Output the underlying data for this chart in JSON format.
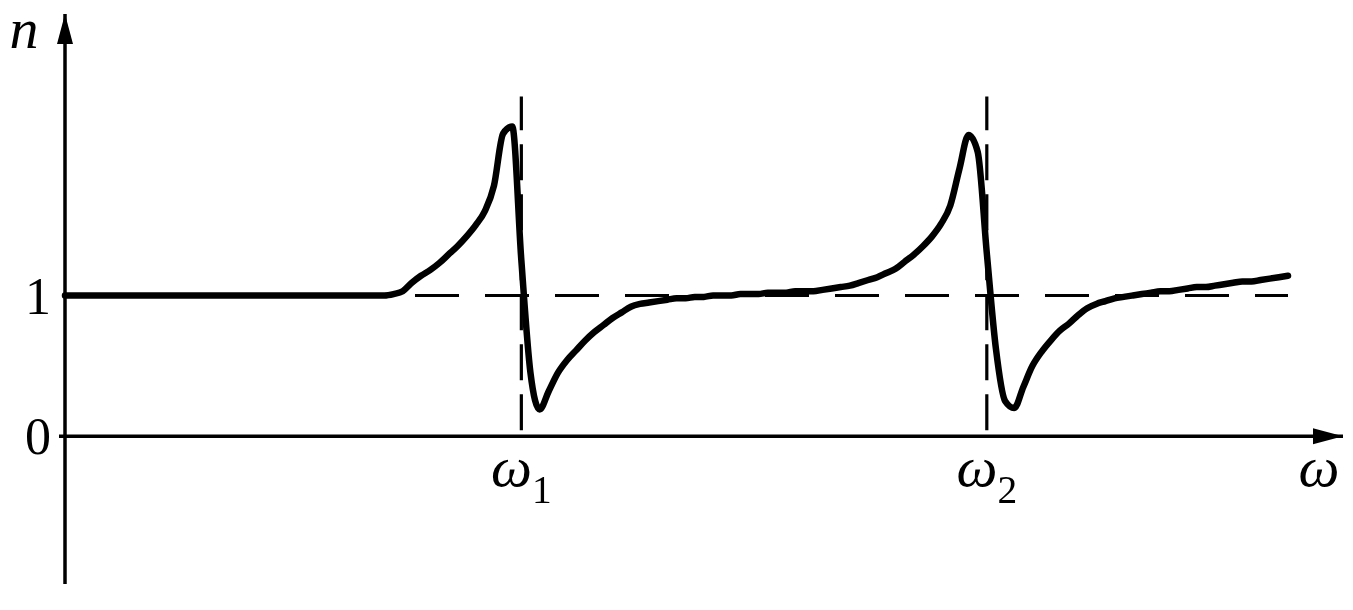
{
  "chart_data": {
    "type": "line",
    "categories": [
      null,
      null,
      null,
      null,
      null,
      null,
      null,
      null,
      null,
      null,
      null,
      null,
      null,
      null,
      null,
      null,
      null,
      null,
      null,
      null,
      null,
      null,
      null,
      null,
      null,
      null,
      null,
      null,
      null,
      null,
      null,
      null,
      null,
      null,
      null,
      null,
      null,
      null,
      null,
      null,
      null,
      null,
      null,
      null,
      null,
      null,
      null,
      null,
      null,
      null,
      "ω$_{1}$",
      null,
      null,
      null,
      null,
      null,
      null,
      null,
      null,
      null,
      null,
      null,
      null,
      null,
      null,
      null,
      null,
      null,
      null,
      null,
      null,
      null,
      null,
      null,
      null,
      null,
      null,
      null,
      null,
      null,
      null,
      null,
      null,
      null,
      null,
      null,
      null,
      null,
      null,
      null,
      null,
      null,
      null,
      null,
      null,
      null,
      null,
      null,
      null,
      null,
      null,
      "ω$_{2}$",
      null,
      null,
      null,
      null,
      null,
      null,
      null,
      null,
      null,
      null,
      null,
      null,
      null,
      null,
      null,
      null,
      null,
      null,
      null,
      null,
      null,
      null,
      null,
      null,
      null,
      null,
      null,
      null,
      null,
      null,
      null,
      null,
      null
    ],
    "series": [
      {
        "color": "#000000",
        "values": [
          1,
          1,
          1,
          1,
          1,
          1,
          1,
          1,
          1,
          1,
          1,
          1,
          1,
          1,
          1,
          1,
          1,
          1,
          1,
          1,
          1,
          1,
          1,
          1,
          1,
          1,
          1,
          1,
          1,
          1,
          1,
          1,
          1,
          1,
          1,
          1,
          1.01,
          1.03,
          1.09,
          1.14,
          1.18,
          1.23,
          1.29,
          1.35,
          1.42,
          1.5,
          1.6,
          1.78,
          2.15,
          2.2,
          1.25,
          0.45,
          0.19,
          0.32,
          0.45,
          0.54,
          0.61,
          0.68,
          0.74,
          0.79,
          0.84,
          0.88,
          0.92,
          0.94,
          0.95,
          0.96,
          0.97,
          0.98,
          0.98,
          0.99,
          0.99,
          1,
          1,
          1,
          1.01,
          1.01,
          1.01,
          1.02,
          1.02,
          1.02,
          1.03,
          1.03,
          1.03,
          1.04,
          1.05,
          1.06,
          1.07,
          1.09,
          1.11,
          1.13,
          1.16,
          1.19,
          1.24,
          1.29,
          1.35,
          1.42,
          1.51,
          1.64,
          1.9,
          2.14,
          2.02,
          1.3,
          0.62,
          0.25,
          0.2,
          0.35,
          0.5,
          0.6,
          0.68,
          0.75,
          0.8,
          0.86,
          0.91,
          0.94,
          0.96,
          0.98,
          0.99,
          1,
          1.01,
          1.02,
          1.03,
          1.03,
          1.04,
          1.05,
          1.06,
          1.06,
          1.07,
          1.08,
          1.09,
          1.1,
          1.1,
          1.11,
          1.12,
          1.13,
          1.14
        ]
      }
    ],
    "ylim": [
      -1.05,
      3.0
    ],
    "yticks": [
      0,
      1
    ],
    "xlabel": "ω",
    "ylabel": "n",
    "ref_lines": [
      {
        "axis": "y",
        "value": 1,
        "color": "#000000",
        "line_style": "dashed"
      },
      {
        "axis": "x",
        "value": "ω$_{1}$",
        "color": "#000000",
        "line_style": "dashed"
      },
      {
        "axis": "x",
        "value": "ω$_{2}$",
        "color": "#000000",
        "line_style": "dashed"
      }
    ]
  }
}
